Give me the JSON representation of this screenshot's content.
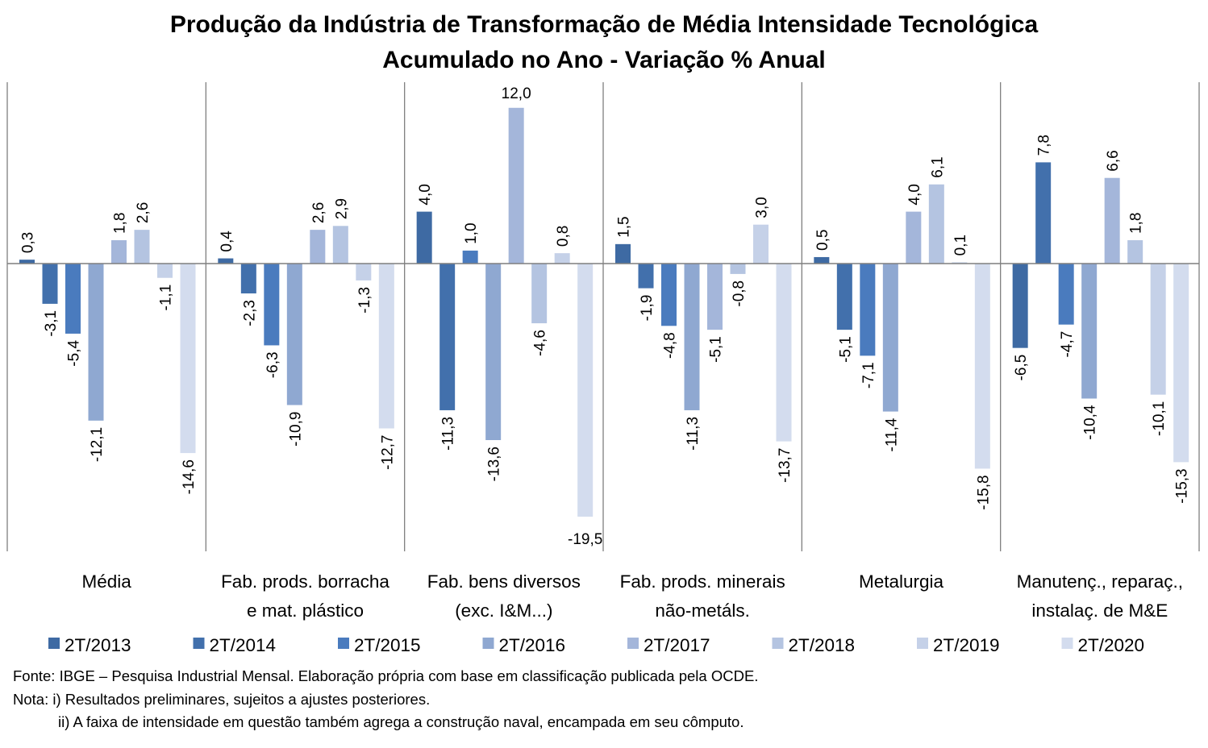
{
  "chart_data": {
    "type": "bar",
    "title": "Produção da Indústria de Transformação de Média Intensidade Tecnológica",
    "subtitle": "Acumulado no Ano - Variação % Anual",
    "categories": [
      [
        "Média"
      ],
      [
        "Fab. prods. borracha",
        "e mat. plástico"
      ],
      [
        "Fab. bens diversos",
        "(exc. I&M...)"
      ],
      [
        "Fab. prods. minerais",
        "não-metáls."
      ],
      [
        "Metalurgia"
      ],
      [
        "Manutenç., reparaç.,",
        "instalaç. de M&E"
      ]
    ],
    "series": [
      {
        "name": "2T/2013",
        "color": "#3e6aa3",
        "values": [
          0.3,
          0.4,
          4.0,
          1.5,
          0.5,
          -6.5
        ],
        "labels": [
          "0,3",
          "0,4",
          "4,0",
          "1,5",
          "0,5",
          "-6,5"
        ]
      },
      {
        "name": "2T/2014",
        "color": "#4270ac",
        "values": [
          -3.1,
          -2.3,
          -11.3,
          -1.9,
          -5.1,
          7.8
        ],
        "labels": [
          "-3,1",
          "-2,3",
          "-11,3",
          "-1,9",
          "-5,1",
          "7,8"
        ]
      },
      {
        "name": "2T/2015",
        "color": "#4a7bbe",
        "values": [
          -5.4,
          -6.3,
          1.0,
          -4.8,
          -7.1,
          -4.7
        ],
        "labels": [
          "-5,4",
          "-6,3",
          "1,0",
          "-4,8",
          "-7,1",
          "-4,7"
        ]
      },
      {
        "name": "2T/2016",
        "color": "#8fa8d1",
        "values": [
          -12.1,
          -10.9,
          -13.6,
          -11.3,
          -11.4,
          -10.4
        ],
        "labels": [
          "-12,1",
          "-10,9",
          "-13,6",
          "-11,3",
          "-11,4",
          "-10,4"
        ]
      },
      {
        "name": "2T/2017",
        "color": "#a4b6da",
        "values": [
          1.8,
          2.6,
          12.0,
          -5.1,
          4.0,
          6.6
        ],
        "labels": [
          "1,8",
          "2,6",
          "12,0",
          "-5,1",
          "4,0",
          "6,6"
        ]
      },
      {
        "name": "2T/2018",
        "color": "#b4c4e1",
        "values": [
          2.6,
          2.9,
          -4.6,
          -0.8,
          6.1,
          1.8
        ],
        "labels": [
          "2,6",
          "2,9",
          "-4,6",
          "-0,8",
          "6,1",
          "1,8"
        ]
      },
      {
        "name": "2T/2019",
        "color": "#c5d1e8",
        "values": [
          -1.1,
          -1.3,
          0.8,
          3.0,
          0.1,
          -10.1
        ],
        "labels": [
          "-1,1",
          "-1,3",
          "0,8",
          "3,0",
          "0,1",
          "-10,1"
        ]
      },
      {
        "name": "2T/2020",
        "color": "#d3dcee",
        "values": [
          -14.6,
          -12.7,
          -19.5,
          -13.7,
          -15.8,
          -15.3
        ],
        "labels": [
          "-14,6",
          "-12,7",
          "-19,5",
          "-13,7",
          "-15,8",
          "-15,3"
        ]
      }
    ],
    "ylim": [
      -22,
      14
    ],
    "xlabel": "",
    "ylabel": "",
    "legend": "bottom",
    "grid": false
  },
  "notes": {
    "source": "Fonte: IBGE – Pesquisa Industrial Mensal. Elaboração própria com base em classificação publicada pela OCDE.",
    "note1": "Nota: i) Resultados preliminares, sujeitos a ajustes posteriores.",
    "note2": "ii) A faixa de intensidade em questão também agrega a construção naval, encampada em seu cômputo."
  }
}
